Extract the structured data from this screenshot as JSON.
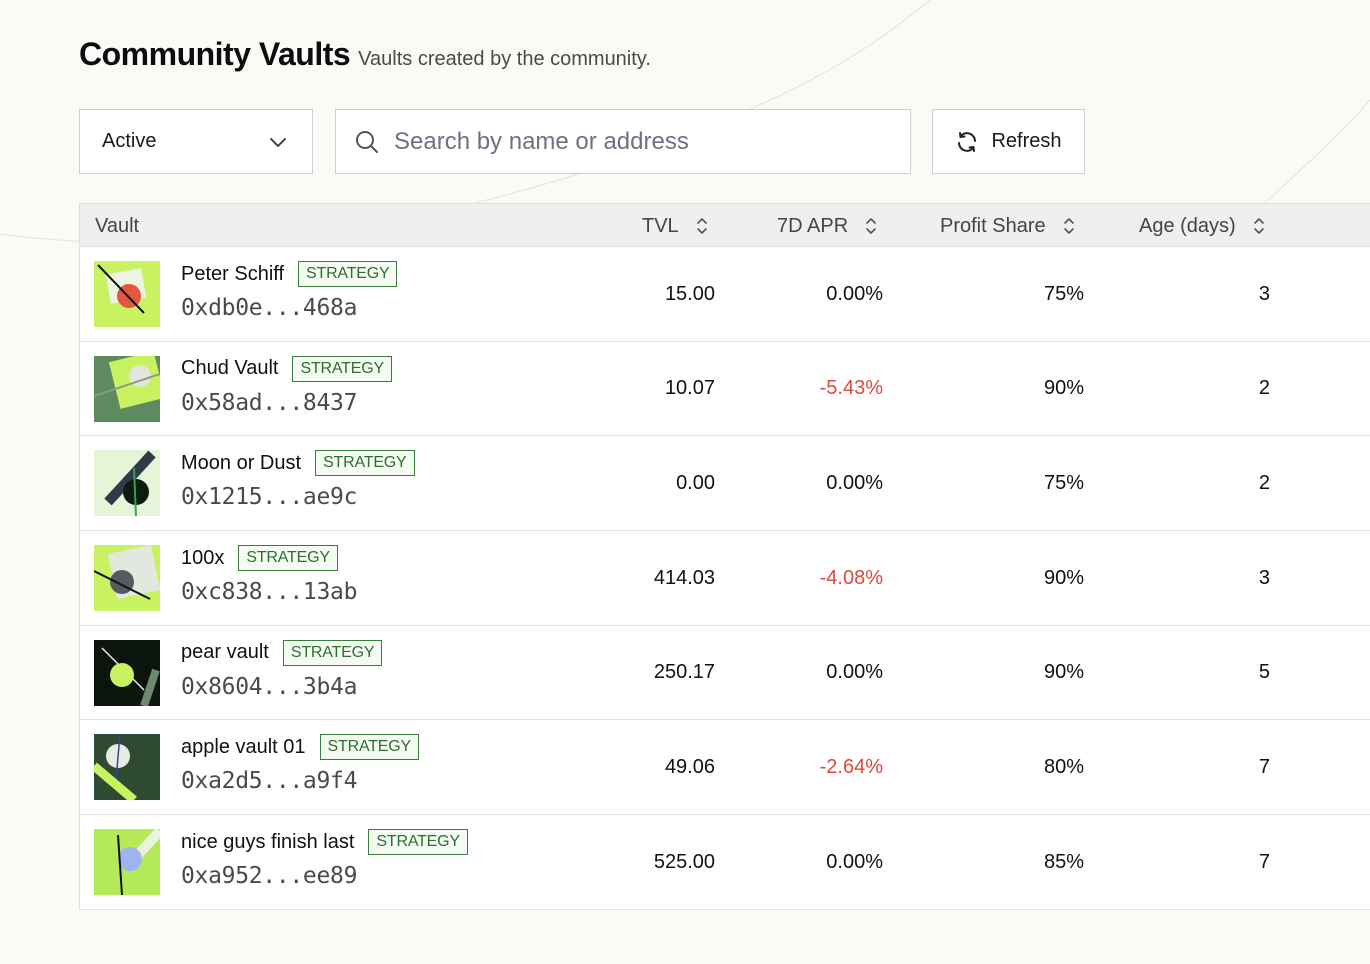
{
  "header": {
    "title": "Community Vaults",
    "subtitle": "Vaults created by the community."
  },
  "controls": {
    "status_filter": "Active",
    "search_placeholder": "Search by name or address",
    "refresh_label": "Refresh"
  },
  "table": {
    "columns": [
      "Vault",
      "TVL",
      "7D APR",
      "Profit Share",
      "Age (days)"
    ],
    "badge_label": "STRATEGY",
    "rows": [
      {
        "name": "Peter Schiff",
        "address": "0xdb0e...468a",
        "tvl": "15.00",
        "apr": "0.00%",
        "apr_negative": false,
        "profit_share": "75%",
        "age": "3"
      },
      {
        "name": "Chud Vault",
        "address": "0x58ad...8437",
        "tvl": "10.07",
        "apr": "-5.43%",
        "apr_negative": true,
        "profit_share": "90%",
        "age": "2"
      },
      {
        "name": "Moon or Dust",
        "address": "0x1215...ae9c",
        "tvl": "0.00",
        "apr": "0.00%",
        "apr_negative": false,
        "profit_share": "75%",
        "age": "2"
      },
      {
        "name": "100x",
        "address": "0xc838...13ab",
        "tvl": "414.03",
        "apr": "-4.08%",
        "apr_negative": true,
        "profit_share": "90%",
        "age": "3"
      },
      {
        "name": "pear vault",
        "address": "0x8604...3b4a",
        "tvl": "250.17",
        "apr": "0.00%",
        "apr_negative": false,
        "profit_share": "90%",
        "age": "5"
      },
      {
        "name": "apple vault 01",
        "address": "0xa2d5...a9f4",
        "tvl": "49.06",
        "apr": "-2.64%",
        "apr_negative": true,
        "profit_share": "80%",
        "age": "7"
      },
      {
        "name": "nice guys finish last",
        "address": "0xa952...ee89",
        "tvl": "525.00",
        "apr": "0.00%",
        "apr_negative": false,
        "profit_share": "85%",
        "age": "7"
      }
    ]
  },
  "colors": {
    "negative": "#e0473b",
    "badge": "#2f6e2f",
    "accent_lime": "#c8f260"
  }
}
